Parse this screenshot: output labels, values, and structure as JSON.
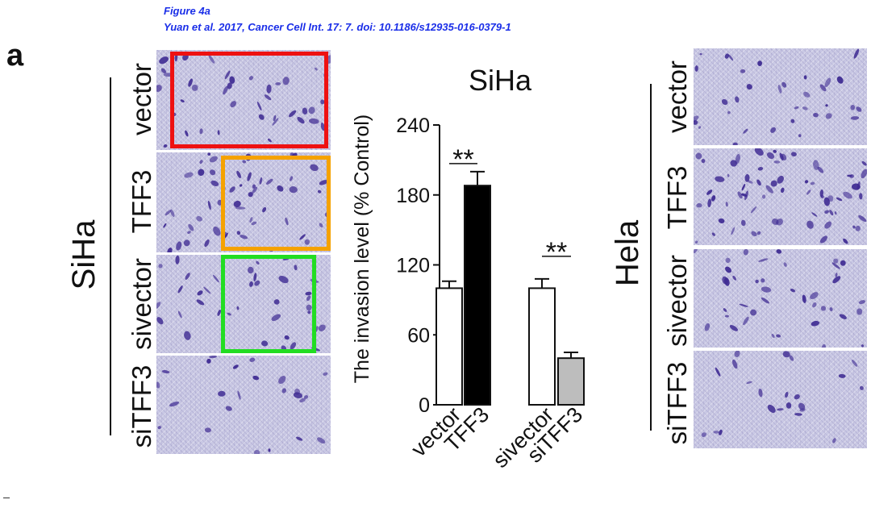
{
  "caption": {
    "figure_title": "Figure 4a",
    "citation": "Yuan et al. 2017, Cancer Cell Int. 17: 7.   doi: 10.1186/s12935-016-0379-1"
  },
  "panel_letter": "a",
  "siha": {
    "cell_label": "SiHa",
    "row_labels": [
      "vector",
      "TFF3",
      "sivector",
      "siTFF3"
    ]
  },
  "hela": {
    "cell_label": "Hela",
    "row_labels": [
      "vector",
      "TFF3",
      "sivector",
      "siTFF3"
    ]
  },
  "highlight_colors": {
    "red": "#ee1111",
    "orange": "#f5a200",
    "green": "#22dd22"
  },
  "stain_color": "#3e2a92",
  "chart_data": {
    "type": "bar",
    "title": "SiHa",
    "ylabel": "The invasion level (% Control)",
    "xlabel": "",
    "categories": [
      "vector",
      "TFF3",
      "sivector",
      "siTFF3"
    ],
    "values": [
      100,
      188,
      100,
      40
    ],
    "errors": [
      6,
      12,
      8,
      5
    ],
    "bar_colors": [
      "#ffffff",
      "#000000",
      "#ffffff",
      "#bdbdbd"
    ],
    "ylim": [
      0,
      240
    ],
    "yticks": [
      0,
      60,
      120,
      180,
      240
    ],
    "annotations": [
      {
        "text": "**",
        "pair": [
          0,
          1
        ]
      },
      {
        "text": "**",
        "pair": [
          2,
          3
        ]
      }
    ]
  }
}
